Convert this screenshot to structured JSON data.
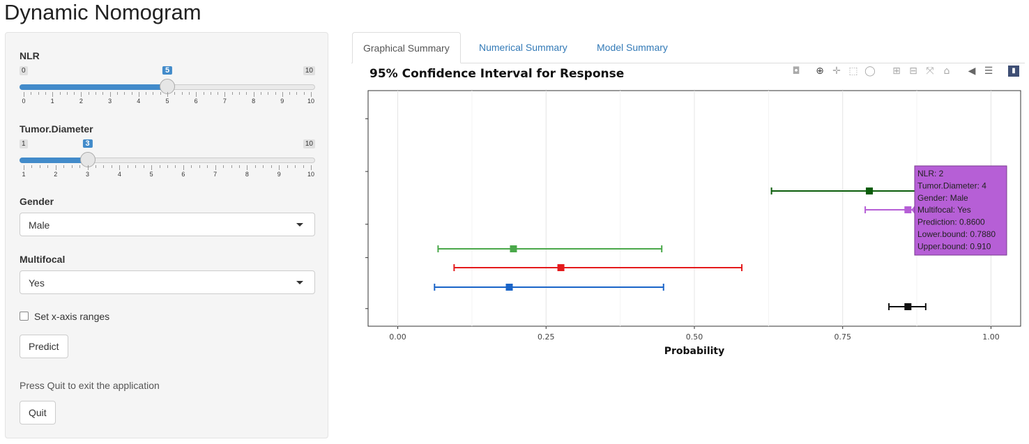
{
  "app": {
    "title": "Dynamic Nomogram"
  },
  "sidebar": {
    "nlr": {
      "label": "NLR",
      "min": 0,
      "max": 10,
      "value": 5,
      "ticks": [
        "0",
        "1",
        "2",
        "3",
        "4",
        "5",
        "6",
        "7",
        "8",
        "9",
        "10"
      ]
    },
    "tumor": {
      "label": "Tumor.Diameter",
      "min": 1,
      "max": 10,
      "value": 3,
      "ticks": [
        "1",
        "2",
        "3",
        "4",
        "5",
        "6",
        "7",
        "8",
        "9",
        "10"
      ]
    },
    "gender": {
      "label": "Gender",
      "selected": "Male"
    },
    "multifocal": {
      "label": "Multifocal",
      "selected": "Yes"
    },
    "xrange_checkbox": {
      "label": "Set x-axis ranges",
      "checked": false
    },
    "predict_label": "Predict",
    "quit_help": "Press Quit to exit the application",
    "quit_label": "Quit"
  },
  "tabs": [
    {
      "label": "Graphical Summary",
      "active": true
    },
    {
      "label": "Numerical Summary",
      "active": false
    },
    {
      "label": "Model Summary",
      "active": false
    }
  ],
  "plot": {
    "title": "95% Confidence Interval for Response",
    "modebar_icons": [
      "camera-icon",
      "zoom-icon",
      "pan-icon",
      "box-select-icon",
      "lasso-icon",
      "zoom-in-icon",
      "zoom-out-icon",
      "autoscale-icon",
      "reset-axes-icon",
      "hover-closest-icon",
      "hover-compare-icon",
      "plotly-logo-icon"
    ]
  },
  "chart_data": {
    "type": "scatter",
    "title": "95% Confidence Interval for Response",
    "xlabel": "Probability",
    "ylabel": "",
    "xlim": [
      -0.05,
      1.05
    ],
    "xticks": [
      "0.00",
      "0.25",
      "0.50",
      "0.75",
      "1.00"
    ],
    "xtick_values": [
      0,
      0.25,
      0.5,
      0.75,
      1.0
    ],
    "grid": true,
    "series": [
      {
        "color": "#0b5d0b",
        "row": 6,
        "prediction": 0.795,
        "lower": 0.63,
        "upper": 0.945
      },
      {
        "color": "#b65fd6",
        "row": 5,
        "prediction": 0.86,
        "lower": 0.788,
        "upper": 0.91
      },
      {
        "color": "#4aa84a",
        "row": 4,
        "prediction": 0.195,
        "lower": 0.068,
        "upper": 0.445
      },
      {
        "color": "#e41a1c",
        "row": 3,
        "prediction": 0.275,
        "lower": 0.095,
        "upper": 0.58
      },
      {
        "color": "#1a64c8",
        "row": 2,
        "prediction": 0.188,
        "lower": 0.062,
        "upper": 0.448
      },
      {
        "color": "#111111",
        "row": 1,
        "prediction": 0.86,
        "lower": 0.828,
        "upper": 0.89
      }
    ],
    "tooltip": {
      "color": "#b65fd6",
      "lines": [
        "NLR: 2",
        "Tumor.Diameter: 4",
        "Gender: Male",
        "Multifocal: Yes",
        "Prediction: 0.8600",
        "Lower.bound: 0.7880",
        "Upper.bound: 0.910"
      ]
    }
  }
}
